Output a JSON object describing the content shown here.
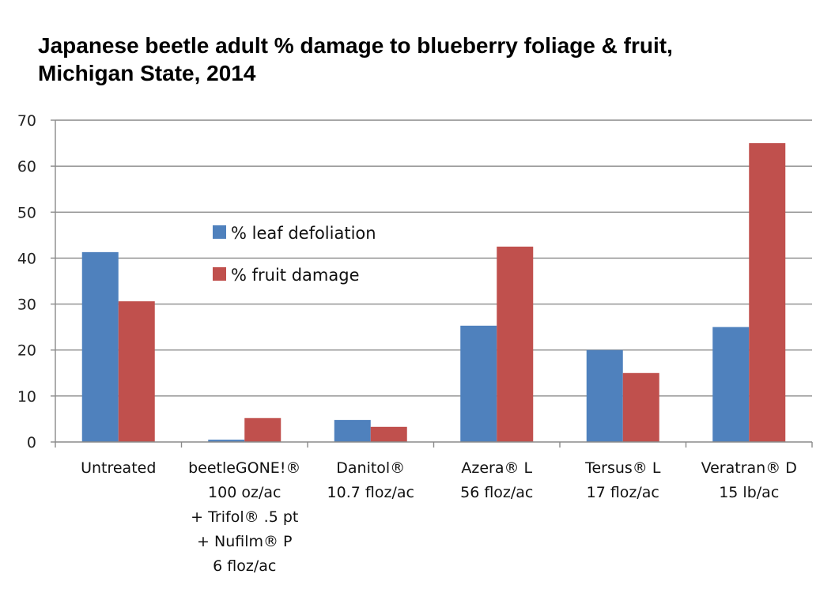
{
  "chart_data": {
    "type": "bar",
    "title_lines": [
      "Japanese beetle adult % damage to blueberry foliage & fruit,",
      "Michigan State, 2014"
    ],
    "categories": [
      [
        "Untreated"
      ],
      [
        "beetleGONE!®",
        "100 oz/ac",
        "+ Trifol® .5 pt",
        "+ Nufilm® P",
        "6 floz/ac"
      ],
      [
        "Danitol®",
        "10.7 floz/ac"
      ],
      [
        "Azera® L",
        "56 floz/ac"
      ],
      [
        "Tersus® L",
        "17 floz/ac"
      ],
      [
        "Veratran® D",
        "15 lb/ac"
      ]
    ],
    "series": [
      {
        "name": "% leaf defoliation",
        "color": "#4f81bd",
        "values": [
          41.3,
          0.5,
          4.8,
          25.3,
          20.0,
          25.0
        ]
      },
      {
        "name": "% fruit damage",
        "color": "#c0504d",
        "values": [
          30.6,
          5.2,
          3.3,
          42.5,
          15.0,
          65.0
        ]
      }
    ],
    "ylim": [
      0,
      70
    ],
    "yticks": [
      0,
      10,
      20,
      30,
      40,
      50,
      60,
      70
    ],
    "grid": true,
    "legend_position": "inside-upper-left"
  }
}
